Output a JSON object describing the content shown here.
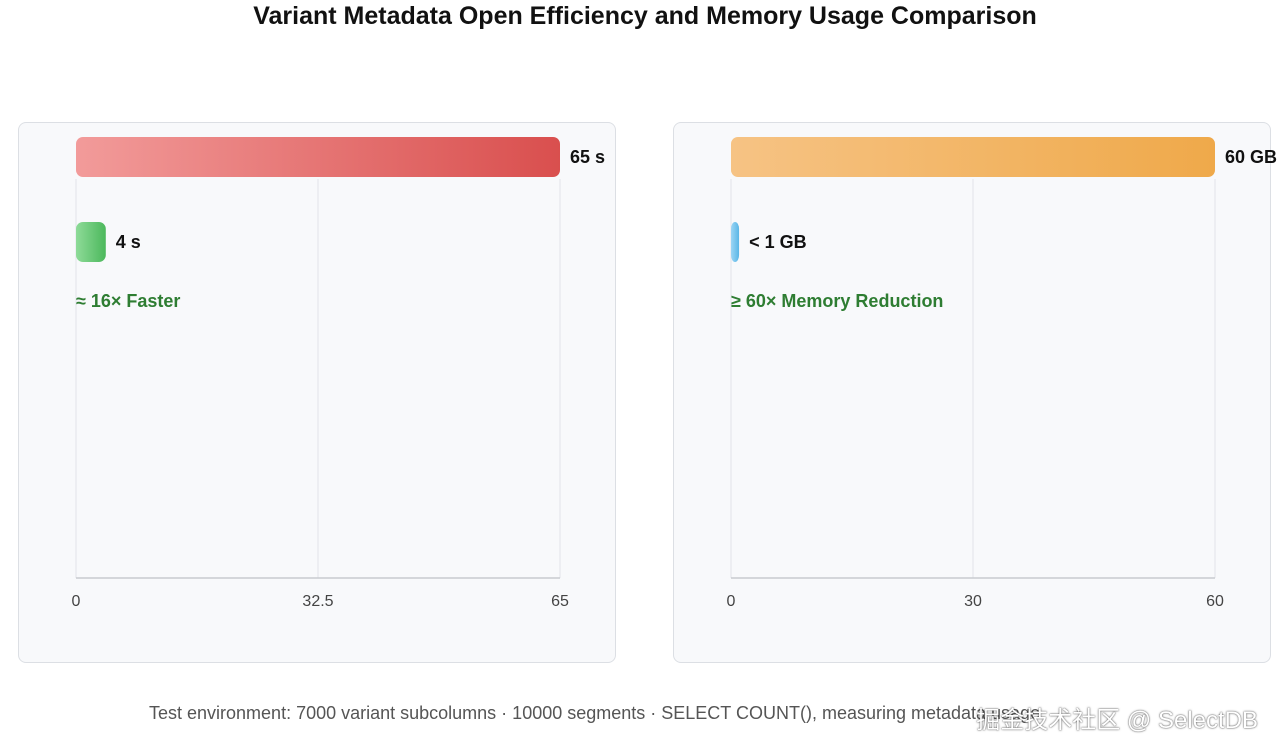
{
  "page": {
    "title": "Variant Metadata Open Efficiency and Memory Usage Comparison",
    "footer": "Test environment: 7000 variant subcolumns · 10000 segments · SELECT COUNT(), measuring metadata usage",
    "watermark": "掘金技术社区 @ SelectDB"
  },
  "chart_data": [
    {
      "type": "bar",
      "orientation": "horizontal",
      "categories": [
        "",
        ""
      ],
      "values": [
        65,
        4
      ],
      "value_labels": [
        "65 s",
        "4 s"
      ],
      "annotation": "≈ 16× Faster",
      "annotation_color": "#2e7d32",
      "xlim": [
        0,
        65
      ],
      "ticks": [
        "0",
        "32.5",
        "65"
      ],
      "grid": true,
      "colors": [
        [
          "#f29b9a",
          "#d94f4e"
        ],
        [
          "#8edb98",
          "#4cb85c"
        ]
      ]
    },
    {
      "type": "bar",
      "orientation": "horizontal",
      "categories": [
        "",
        ""
      ],
      "values": [
        60,
        1
      ],
      "value_labels": [
        "60 GB",
        "< 1 GB"
      ],
      "annotation": "≥ 60× Memory Reduction",
      "annotation_color": "#2e7d32",
      "xlim": [
        0,
        60
      ],
      "ticks": [
        "0",
        "30",
        "60"
      ],
      "grid": true,
      "colors": [
        [
          "#f6c384",
          "#efa94a"
        ],
        [
          "#9bd5f5",
          "#5ab6e6"
        ]
      ]
    }
  ]
}
